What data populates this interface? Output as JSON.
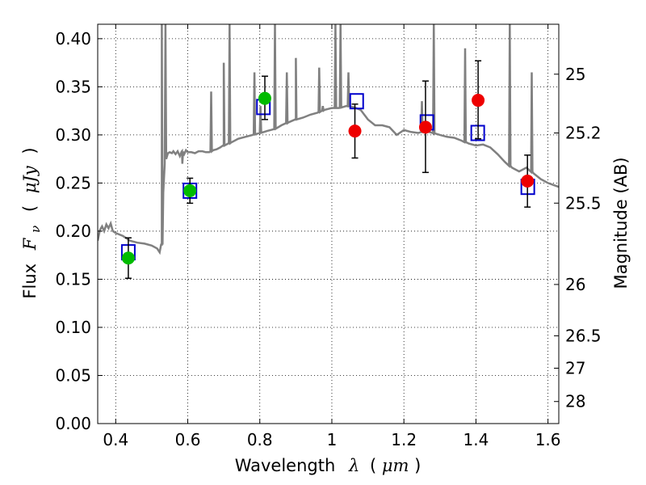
{
  "chart_data": {
    "type": "scatter",
    "title": "",
    "xlabel": "Wavelength  λ (μm)",
    "ylabel": "Flux  F_ν  ( μJy )",
    "ylabel_parts": [
      "Flux",
      "F",
      "ν",
      "(",
      "μJy",
      ")"
    ],
    "xlabel_parts": [
      "Wavelength",
      "λ",
      "(",
      "μm",
      ")"
    ],
    "y2label": "Magnitude (AB)",
    "xlim": [
      0.35,
      1.63
    ],
    "ylim": [
      0.0,
      0.415
    ],
    "grid": true,
    "colors": {
      "model": "#808080",
      "green_points": "#00bb00",
      "red_points": "#ee0000",
      "squares": "#0000cc",
      "errorbars": "#000000"
    },
    "x_ticks": [
      0.4,
      0.6,
      0.8,
      1.0,
      1.2,
      1.4,
      1.6
    ],
    "x_tick_labels": [
      "0.4",
      "0.6",
      "0.8",
      "1",
      "1.2",
      "1.4",
      "1.6"
    ],
    "y_ticks": [
      0.0,
      0.05,
      0.1,
      0.15,
      0.2,
      0.25,
      0.3,
      0.35,
      0.4
    ],
    "y_tick_labels": [
      "0.00",
      "0.05",
      "0.10",
      "0.15",
      "0.20",
      "0.25",
      "0.30",
      "0.35",
      "0.40"
    ],
    "y2_ticks": [
      {
        "mag": 25,
        "label": "25"
      },
      {
        "mag": 25.2,
        "label": "25.2"
      },
      {
        "mag": 25.5,
        "label": "25.5"
      },
      {
        "mag": 26,
        "label": "26"
      },
      {
        "mag": 26.5,
        "label": "26.5"
      },
      {
        "mag": 27,
        "label": "27"
      },
      {
        "mag": 28,
        "label": "28"
      }
    ],
    "observed_green": [
      {
        "x": 0.435,
        "y": 0.172,
        "err_lo": 0.021,
        "err_hi": 0.021
      },
      {
        "x": 0.606,
        "y": 0.242,
        "err_lo": 0.013,
        "err_hi": 0.013
      },
      {
        "x": 0.814,
        "y": 0.338,
        "err_lo": 0.022,
        "err_hi": 0.023
      }
    ],
    "observed_red": [
      {
        "x": 1.064,
        "y": 0.304,
        "err_lo": 0.028,
        "err_hi": 0.028
      },
      {
        "x": 1.26,
        "y": 0.308,
        "err_lo": 0.047,
        "err_hi": 0.048
      },
      {
        "x": 1.406,
        "y": 0.336,
        "err_lo": 0.04,
        "err_hi": 0.041
      },
      {
        "x": 1.543,
        "y": 0.252,
        "err_lo": 0.027,
        "err_hi": 0.027
      }
    ],
    "model_squares": [
      {
        "x": 0.435,
        "y": 0.178
      },
      {
        "x": 0.606,
        "y": 0.242
      },
      {
        "x": 0.81,
        "y": 0.329
      },
      {
        "x": 1.069,
        "y": 0.335
      },
      {
        "x": 1.264,
        "y": 0.313
      },
      {
        "x": 1.405,
        "y": 0.302
      },
      {
        "x": 1.544,
        "y": 0.246
      }
    ],
    "model_spectrum": [
      [
        0.35,
        0.19
      ],
      [
        0.356,
        0.201
      ],
      [
        0.362,
        0.205
      ],
      [
        0.368,
        0.2
      ],
      [
        0.374,
        0.207
      ],
      [
        0.38,
        0.203
      ],
      [
        0.386,
        0.208
      ],
      [
        0.392,
        0.2
      ],
      [
        0.4,
        0.198
      ],
      [
        0.42,
        0.195
      ],
      [
        0.44,
        0.19
      ],
      [
        0.46,
        0.188
      ],
      [
        0.48,
        0.187
      ],
      [
        0.5,
        0.185
      ],
      [
        0.515,
        0.182
      ],
      [
        0.522,
        0.178
      ],
      [
        0.528,
        0.186
      ],
      [
        0.532,
        0.24
      ],
      [
        0.536,
        0.27
      ],
      [
        0.54,
        0.28
      ],
      [
        0.545,
        0.281
      ],
      [
        0.55,
        0.282
      ],
      [
        0.556,
        0.281
      ],
      [
        0.56,
        0.283
      ],
      [
        0.566,
        0.28
      ],
      [
        0.572,
        0.283
      ],
      [
        0.578,
        0.278
      ],
      [
        0.584,
        0.283
      ],
      [
        0.59,
        0.28
      ],
      [
        0.595,
        0.284
      ],
      [
        0.6,
        0.282
      ],
      [
        0.61,
        0.282
      ],
      [
        0.62,
        0.281
      ],
      [
        0.63,
        0.283
      ],
      [
        0.64,
        0.283
      ],
      [
        0.65,
        0.282
      ],
      [
        0.66,
        0.282
      ],
      [
        0.67,
        0.284
      ],
      [
        0.68,
        0.285
      ],
      [
        0.69,
        0.287
      ],
      [
        0.7,
        0.289
      ],
      [
        0.72,
        0.292
      ],
      [
        0.74,
        0.296
      ],
      [
        0.76,
        0.298
      ],
      [
        0.78,
        0.3
      ],
      [
        0.8,
        0.302
      ],
      [
        0.82,
        0.304
      ],
      [
        0.84,
        0.306
      ],
      [
        0.86,
        0.31
      ],
      [
        0.88,
        0.313
      ],
      [
        0.9,
        0.316
      ],
      [
        0.92,
        0.318
      ],
      [
        0.94,
        0.321
      ],
      [
        0.96,
        0.323
      ],
      [
        0.98,
        0.326
      ],
      [
        1.0,
        0.328
      ],
      [
        1.02,
        0.328
      ],
      [
        1.04,
        0.33
      ],
      [
        1.06,
        0.329
      ],
      [
        1.08,
        0.326
      ],
      [
        1.1,
        0.316
      ],
      [
        1.12,
        0.31
      ],
      [
        1.14,
        0.31
      ],
      [
        1.16,
        0.308
      ],
      [
        1.18,
        0.3
      ],
      [
        1.2,
        0.305
      ],
      [
        1.22,
        0.303
      ],
      [
        1.24,
        0.302
      ],
      [
        1.26,
        0.304
      ],
      [
        1.28,
        0.302
      ],
      [
        1.3,
        0.3
      ],
      [
        1.32,
        0.298
      ],
      [
        1.34,
        0.297
      ],
      [
        1.36,
        0.294
      ],
      [
        1.38,
        0.291
      ],
      [
        1.4,
        0.289
      ],
      [
        1.42,
        0.29
      ],
      [
        1.44,
        0.287
      ],
      [
        1.46,
        0.28
      ],
      [
        1.48,
        0.272
      ],
      [
        1.5,
        0.266
      ],
      [
        1.52,
        0.262
      ],
      [
        1.54,
        0.266
      ],
      [
        1.56,
        0.26
      ],
      [
        1.58,
        0.254
      ],
      [
        1.6,
        0.25
      ],
      [
        1.615,
        0.248
      ],
      [
        1.63,
        0.246
      ]
    ],
    "emission_lines": [
      {
        "x": 0.528,
        "peak": 0.415
      },
      {
        "x": 0.538,
        "peak": 0.415
      },
      {
        "x": 0.585,
        "peak": 0.27
      },
      {
        "x": 0.665,
        "peak": 0.345
      },
      {
        "x": 0.7,
        "peak": 0.375
      },
      {
        "x": 0.716,
        "peak": 0.415
      },
      {
        "x": 0.785,
        "peak": 0.365
      },
      {
        "x": 0.802,
        "peak": 0.33
      },
      {
        "x": 0.842,
        "peak": 0.415
      },
      {
        "x": 0.875,
        "peak": 0.365
      },
      {
        "x": 0.9,
        "peak": 0.38
      },
      {
        "x": 0.965,
        "peak": 0.37
      },
      {
        "x": 0.975,
        "peak": 0.33
      },
      {
        "x": 1.01,
        "peak": 0.415
      },
      {
        "x": 1.024,
        "peak": 0.415
      },
      {
        "x": 1.046,
        "peak": 0.365
      },
      {
        "x": 1.25,
        "peak": 0.335
      },
      {
        "x": 1.283,
        "peak": 0.415
      },
      {
        "x": 1.37,
        "peak": 0.39
      },
      {
        "x": 1.494,
        "peak": 0.415
      },
      {
        "x": 1.555,
        "peak": 0.365
      }
    ]
  }
}
